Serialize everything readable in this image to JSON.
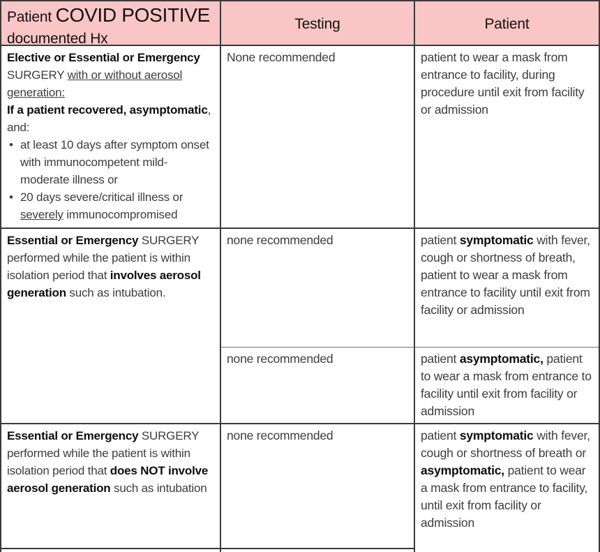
{
  "colors": {
    "header_bg": "#f9c6c5",
    "border": "#3a3a3a",
    "sub_border": "#6f6f6f",
    "text": "#3d3d3d",
    "emphasis_text": "#0e0e0e"
  },
  "header": {
    "condition_col": {
      "prefix": "Patient ",
      "emphasis": "COVID POSITIVE",
      "line2": "documented Hx"
    },
    "testing_col": "Testing",
    "patient_col": "Patient"
  },
  "rows": {
    "row1": {
      "condition": {
        "p1_bold": "Elective or Essential or Emergency",
        "p1_mid": " SURGERY ",
        "p1_underline": "with or without aerosol generation:",
        "p2_bold": "If a patient recovered, asymptomatic",
        "p2_rest": ", and:",
        "bullet1": "at least 10 days after symptom onset with immunocompetent mild-moderate illness or",
        "bullet2_pre": "20 days severe/critical illness or ",
        "bullet2_underline": "severely",
        "bullet2_post": " immunocompromised"
      },
      "testing": "None recommended",
      "patient": "patient to wear a mask from entrance to facility, during procedure until exit from facility or admission"
    },
    "row2": {
      "condition": {
        "bold1": "Essential or Emergency",
        "mid": " SURGERY performed while the patient is within isolation period that ",
        "bold2": "involves aerosol generation",
        "end": " such as intubation."
      },
      "sub1": {
        "testing": "none recommended",
        "patient_pre": "patient ",
        "patient_bold": "symptomatic",
        "patient_post": " with fever, cough or shortness of breath, patient to wear a mask from entrance to facility until exit from facility or admission"
      },
      "sub2": {
        "testing": "none recommended",
        "patient_pre": "patient ",
        "patient_bold": "asymptomatic,",
        "patient_post": " patient to wear a mask from entrance to facility until exit from facility or admission"
      }
    },
    "row3": {
      "condition": {
        "bold1": "Essential or Emergency",
        "mid": " SURGERY performed while the patient is within isolation period that ",
        "bold2": "does NOT involve aerosol generation",
        "end": " such as intubation"
      },
      "testing": "none recommended",
      "patient": {
        "pre": "patient ",
        "bold1": "symptomatic",
        "mid": " with fever, cough or shortness of breath or ",
        "bold2": "asymptomatic,",
        "post": " patient to wear a mask from entrance to facility, until exit from facility or admission"
      }
    }
  }
}
